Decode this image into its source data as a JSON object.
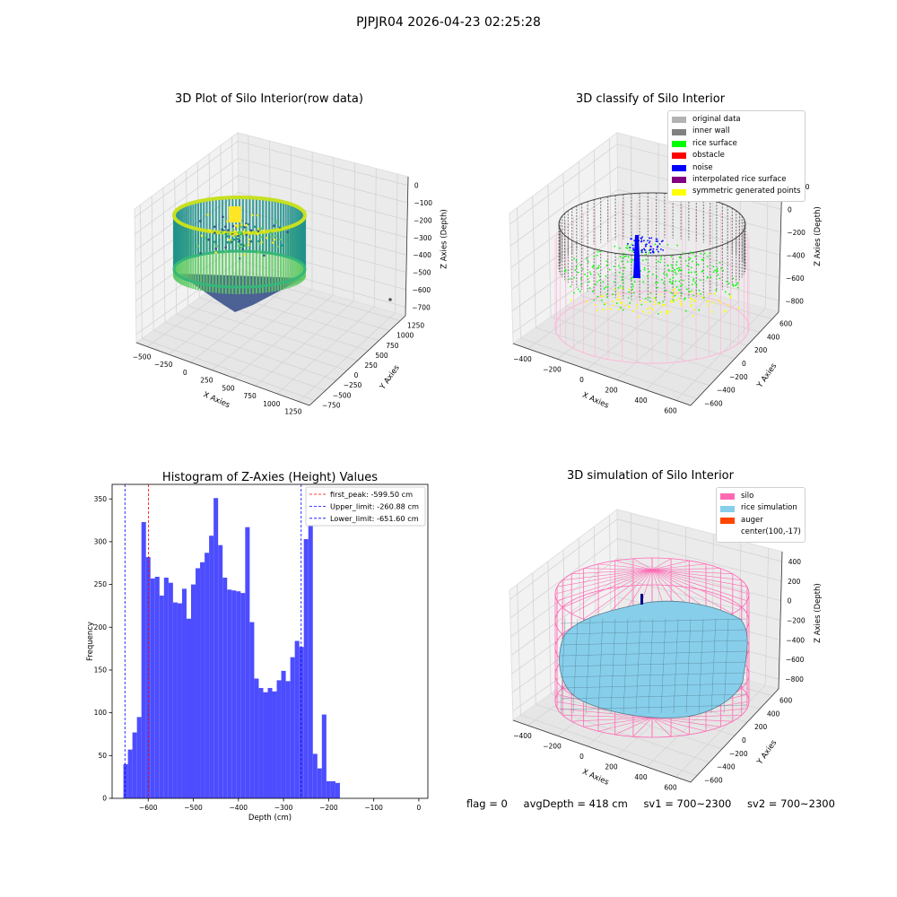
{
  "suptitle": "PJPJR04 2026-04-23 02:25:28",
  "footer": {
    "flag": "flag = 0",
    "avg_depth": "avgDepth = 418 cm",
    "sv1": "sv1 = 700~2300",
    "sv2": "sv2 = 700~2300"
  },
  "colors": {
    "histogram_bar": "#4d4dff",
    "first_peak_line": "#ff0000",
    "limit_lines": "#0000ff",
    "original_data": "#b3b3b3",
    "inner_wall": "#808080",
    "rice_surface": "#00ff00",
    "obstacle": "#ff0000",
    "noise": "#0000ff",
    "interpolated_rice_surface": "#800080",
    "symmetric_generated_points": "#ffff00",
    "silo": "#ff69b4",
    "rice_simulation": "#87ceeb",
    "auger": "#ff4500"
  },
  "panel1": {
    "title": "3D Plot of Silo Interior(row data)",
    "x_label": "X Axies",
    "y_label": "Y Axies",
    "z_label": "Z Axies (Depth)",
    "x_ticks": [
      "−500",
      "−250",
      "0",
      "250",
      "500",
      "750",
      "1000",
      "1250"
    ],
    "y_ticks": [
      "−750",
      "−500",
      "−250",
      "0",
      "250",
      "500",
      "750",
      "1000",
      "1250"
    ],
    "z_ticks": [
      "0",
      "−100",
      "−200",
      "−300",
      "−400",
      "−500",
      "−600",
      "−700"
    ]
  },
  "panel2": {
    "title": "3D classify of Silo Interior",
    "x_label": "X Axies",
    "y_label": "Y Axies",
    "z_label": "Z Axies (Depth)",
    "x_ticks": [
      "−400",
      "−200",
      "0",
      "200",
      "400",
      "600"
    ],
    "y_ticks": [
      "−600",
      "−400",
      "−200",
      "0",
      "200",
      "400",
      "600"
    ],
    "z_ticks": [
      "200",
      "0",
      "−200",
      "−400",
      "−600",
      "−800"
    ],
    "z_top_tick": "00",
    "legend": [
      {
        "label": "original data",
        "color": "#b3b3b3"
      },
      {
        "label": "inner wall",
        "color": "#808080"
      },
      {
        "label": "rice surface",
        "color": "#00ff00"
      },
      {
        "label": "obstacle",
        "color": "#ff0000"
      },
      {
        "label": "noise",
        "color": "#0000ff"
      },
      {
        "label": "interpolated rice surface",
        "color": "#800080"
      },
      {
        "label": "symmetric generated points",
        "color": "#ffff00"
      }
    ]
  },
  "panel4": {
    "title": "3D simulation of Silo Interior",
    "x_label": "X Axies",
    "y_label": "Y Axies",
    "z_label": "Z Axies (Depth)",
    "x_ticks": [
      "−400",
      "−200",
      "0",
      "200",
      "400",
      "600"
    ],
    "y_ticks": [
      "−600",
      "−400",
      "−200",
      "0",
      "200",
      "400",
      "600"
    ],
    "z_ticks": [
      "400",
      "200",
      "0",
      "−200",
      "−400",
      "−600",
      "−800"
    ],
    "legend": [
      {
        "label": "silo",
        "color": "#ff69b4"
      },
      {
        "label": "rice simulation",
        "color": "#87ceeb"
      },
      {
        "label": "auger",
        "color": "#ff4500"
      },
      {
        "label": "center(100,-17)",
        "color": ""
      }
    ]
  },
  "chart_data": [
    {
      "type": "bar",
      "title": "Histogram of Z-Axies (Height) Values",
      "xlabel": "Depth (cm)",
      "ylabel": "Frequency",
      "xlim": [
        -680,
        20
      ],
      "ylim": [
        0,
        367
      ],
      "x_ticks": [
        -600,
        -500,
        -400,
        -300,
        -200,
        -100,
        0
      ],
      "x_tick_labels": [
        "−600",
        "−500",
        "−400",
        "−300",
        "−200",
        "−100",
        "0"
      ],
      "y_ticks": [
        0,
        50,
        100,
        150,
        200,
        250,
        300,
        350
      ],
      "bin_width": 10,
      "bin_start": -655,
      "values": [
        40,
        57,
        77,
        95,
        323,
        282,
        257,
        259,
        237,
        258,
        252,
        229,
        228,
        245,
        210,
        250,
        269,
        276,
        287,
        307,
        351,
        296,
        258,
        244,
        243,
        242,
        240,
        317,
        206,
        140,
        129,
        124,
        129,
        125,
        138,
        149,
        137,
        165,
        184,
        177,
        303,
        347,
        52,
        35,
        98,
        20,
        20,
        18
      ],
      "vlines": [
        {
          "name": "first_peak: -599.50 cm",
          "x": -599.5,
          "color": "#ff0000"
        },
        {
          "name": "Upper_limit: -260.88 cm",
          "x": -260.88,
          "color": "#0000ff"
        },
        {
          "name": "Lower_limit: -651.60 cm",
          "x": -651.6,
          "color": "#0000ff"
        }
      ],
      "legend": "top-right"
    }
  ]
}
